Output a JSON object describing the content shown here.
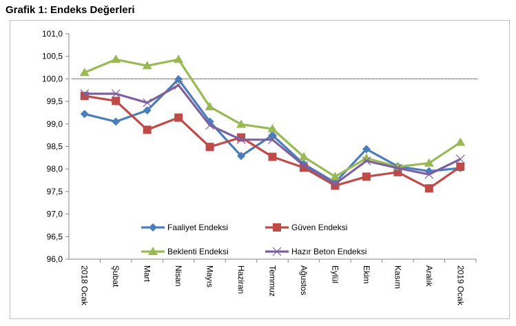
{
  "chart_data": {
    "type": "line",
    "title": "Grafik 1: Endeks Değerleri",
    "xlabel": "",
    "ylabel": "",
    "ylim": [
      96.0,
      101.0
    ],
    "yticks": [
      "96,0",
      "96,5",
      "97,0",
      "97,5",
      "98,0",
      "98,5",
      "99,0",
      "99,5",
      "100,0",
      "100,5",
      "101,0"
    ],
    "reference_line": 100.0,
    "grid": false,
    "legend_placement": "bottom-inside",
    "categories": [
      "2018 Ocak",
      "Şubat",
      "Mart",
      "Nisan",
      "Mayıs",
      "Haziran",
      "Temmuz",
      "Ağustos",
      "Eylül",
      "Ekim",
      "Kasım",
      "Aralık",
      "2019 Ocak"
    ],
    "series": [
      {
        "name": "Faaliyet Endeksi",
        "color": "#4a7ebb",
        "marker": "diamond",
        "values": [
          99.22,
          99.05,
          99.3,
          99.99,
          99.05,
          98.29,
          98.75,
          98.11,
          97.7,
          98.44,
          98.06,
          97.95,
          98.02
        ]
      },
      {
        "name": "Güven Endeksi",
        "color": "#be4b48",
        "marker": "square",
        "values": [
          99.62,
          99.51,
          98.87,
          99.14,
          98.49,
          98.7,
          98.27,
          98.03,
          97.63,
          97.83,
          97.93,
          97.57,
          98.05
        ]
      },
      {
        "name": "Beklenti Endeksi",
        "color": "#98b954",
        "marker": "triangle",
        "values": [
          100.14,
          100.43,
          100.29,
          100.43,
          99.38,
          98.99,
          98.89,
          98.27,
          97.83,
          98.24,
          98.05,
          98.13,
          98.59
        ]
      },
      {
        "name": "Hazır Beton Endeksi",
        "color": "#7d60a0",
        "marker": "x",
        "values": [
          99.67,
          99.67,
          99.47,
          99.86,
          98.97,
          98.65,
          98.65,
          98.08,
          97.67,
          98.18,
          98.02,
          97.88,
          98.22
        ]
      }
    ]
  }
}
